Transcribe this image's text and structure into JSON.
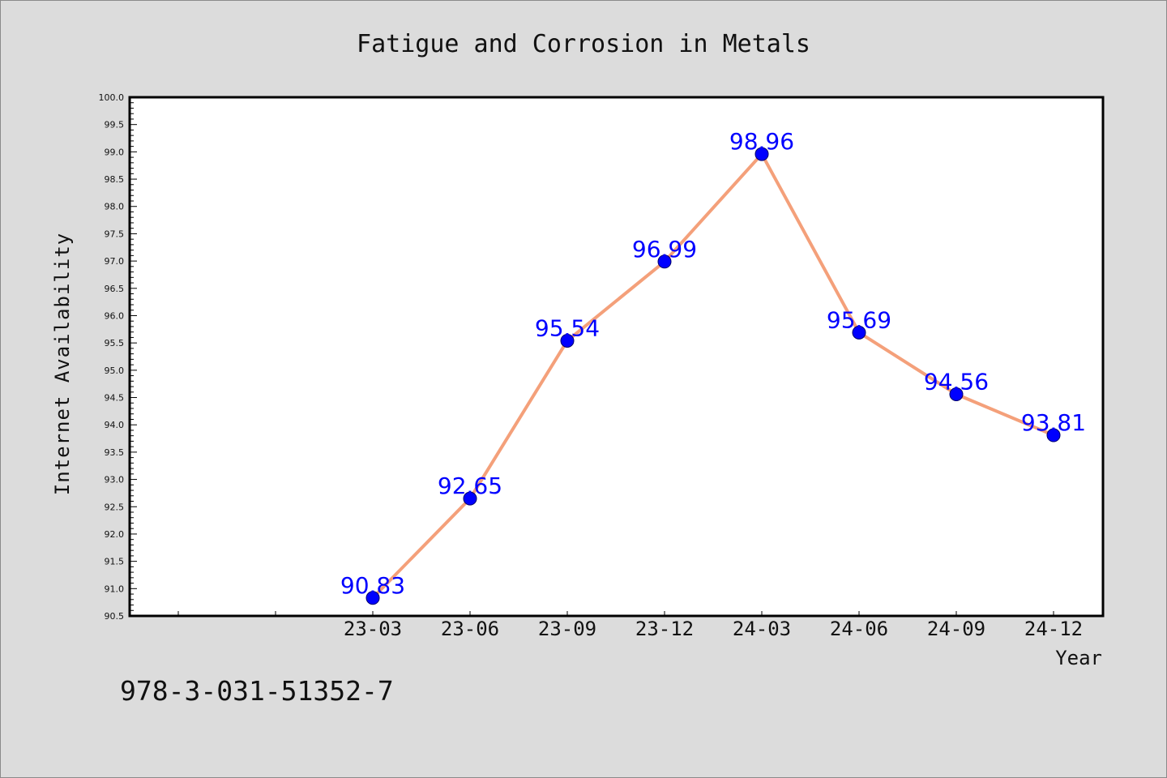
{
  "chart_data": {
    "type": "line",
    "title": "Fatigue and Corrosion in Metals",
    "xlabel": "Year",
    "ylabel": "Internet Availability",
    "categories": [
      "23-03",
      "23-06",
      "23-09",
      "23-12",
      "24-03",
      "24-06",
      "24-09",
      "24-12"
    ],
    "series": [
      {
        "values": [
          90.83,
          92.65,
          95.54,
          96.99,
          98.96,
          95.69,
          94.56,
          93.81
        ]
      }
    ],
    "ylim": [
      90.5,
      100.0
    ],
    "ytick_step": 0.5,
    "data_labels": [
      "90.83",
      "92.65",
      "95.54",
      "96.99",
      "98.96",
      "95.69",
      "94.56",
      "93.81"
    ],
    "grid": false,
    "legend": "none",
    "line_color": "#f4a07a",
    "marker_color": "#0000ff",
    "label_color": "#0000ff"
  },
  "footer": {
    "text": "978-3-031-51352-7"
  }
}
